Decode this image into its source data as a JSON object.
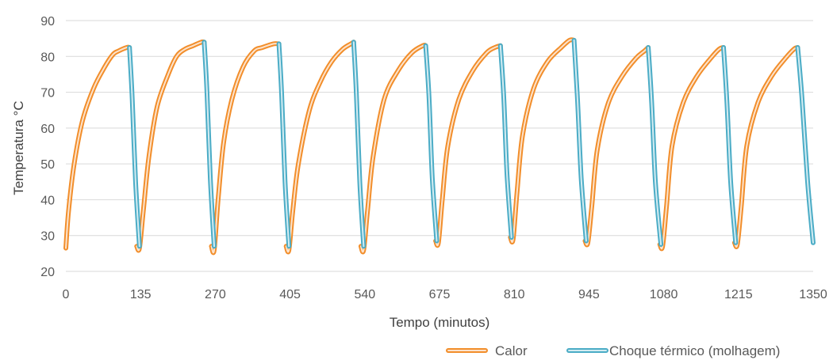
{
  "chart_data": {
    "type": "line",
    "title": "",
    "xlabel": "Tempo (minutos)",
    "ylabel": "Temperatura °C",
    "xlim": [
      0,
      1350
    ],
    "ylim": [
      20,
      90
    ],
    "x_ticks": [
      "0",
      "135",
      "270",
      "405",
      "540",
      "675",
      "810",
      "945",
      "1080",
      "1215",
      "1350"
    ],
    "y_ticks": [
      "20",
      "30",
      "40",
      "50",
      "60",
      "70",
      "80",
      "90"
    ],
    "grid": true,
    "legend_position": "bottom-right",
    "series": [
      {
        "name": "Calor",
        "color": "#F28E2B",
        "cycles": [
          {
            "x": [
              0,
              5,
              15,
              30,
              50,
              70,
              85,
              95,
              110,
              115
            ],
            "y": [
              26.5,
              37,
              50,
              62,
              71,
              77,
              80.5,
              81.5,
              82.5,
              82.5
            ]
          },
          {
            "x": [
              128,
              133,
              140,
              150,
              165,
              185,
              200,
              215,
              230,
              245,
              250
            ],
            "y": [
              27,
              26.5,
              37,
              52,
              66,
              75,
              80,
              82,
              83,
              84,
              84
            ]
          },
          {
            "x": [
              263,
              268,
              275,
              285,
              300,
              320,
              340,
              355,
              375,
              385
            ],
            "y": [
              27,
              26,
              40,
              56,
              68,
              77,
              81.5,
              82.5,
              83.5,
              83.5
            ]
          },
          {
            "x": [
              398,
              403,
              410,
              420,
              440,
              460,
              480,
              500,
              515,
              520
            ],
            "y": [
              27,
              26,
              37,
              50,
              65,
              73,
              78.5,
              82,
              83.5,
              84
            ]
          },
          {
            "x": [
              533,
              538,
              545,
              555,
              575,
              600,
              625,
              645,
              650
            ],
            "y": [
              27,
              26,
              37,
              52,
              68,
              76,
              81,
              83,
              83
            ]
          },
          {
            "x": [
              668,
              673,
              680,
              690,
              710,
              735,
              760,
              775,
              785
            ],
            "y": [
              28.5,
              28,
              40,
              55,
              68,
              76,
              81,
              82.5,
              83
            ]
          },
          {
            "x": [
              803,
              808,
              815,
              825,
              845,
              870,
              895,
              910,
              918
            ],
            "y": [
              29.5,
              29,
              42,
              58,
              71,
              78.5,
              82.5,
              84.5,
              84.5
            ]
          },
          {
            "x": [
              938,
              943,
              950,
              960,
              980,
              1005,
              1030,
              1045,
              1052
            ],
            "y": [
              28.5,
              28,
              38,
              54,
              67,
              74.5,
              79.5,
              81.5,
              82.5
            ]
          },
          {
            "x": [
              1073,
              1078,
              1085,
              1095,
              1115,
              1140,
              1165,
              1180,
              1188
            ],
            "y": [
              27.5,
              27,
              38,
              55,
              67,
              74.5,
              79.5,
              82,
              82.5
            ]
          },
          {
            "x": [
              1208,
              1213,
              1220,
              1230,
              1250,
              1275,
              1300,
              1315,
              1322
            ],
            "y": [
              28,
              27.5,
              38,
              55,
              67,
              74.5,
              79.5,
              82,
              82.5
            ]
          }
        ]
      },
      {
        "name": "Choque térmico (molhagem)",
        "color": "#4BACC6",
        "cycles": [
          {
            "x": [
              115,
              120,
              126,
              133
            ],
            "y": [
              82.5,
              68,
              45,
              27
            ]
          },
          {
            "x": [
              250,
              255,
              261,
              268
            ],
            "y": [
              84,
              70,
              46,
              27
            ]
          },
          {
            "x": [
              385,
              390,
              396,
              403
            ],
            "y": [
              83.5,
              69,
              45,
              27
            ]
          },
          {
            "x": [
              520,
              525,
              531,
              538
            ],
            "y": [
              84,
              69,
              45,
              27
            ]
          },
          {
            "x": [
              650,
              656,
              662,
              670
            ],
            "y": [
              83,
              69,
              46,
              28.5
            ]
          },
          {
            "x": [
              785,
              791,
              797,
              805
            ],
            "y": [
              83,
              69,
              47,
              29.5
            ]
          },
          {
            "x": [
              918,
              924,
              931,
              940
            ],
            "y": [
              84.5,
              69,
              46,
              28.5
            ]
          },
          {
            "x": [
              1052,
              1058,
              1065,
              1075
            ],
            "y": [
              82.5,
              68,
              45,
              27.5
            ]
          },
          {
            "x": [
              1188,
              1194,
              1201,
              1210
            ],
            "y": [
              82.5,
              68,
              45,
              28
            ]
          },
          {
            "x": [
              1322,
              1330,
              1340,
              1350
            ],
            "y": [
              82.5,
              68,
              45,
              28
            ]
          }
        ]
      }
    ]
  }
}
